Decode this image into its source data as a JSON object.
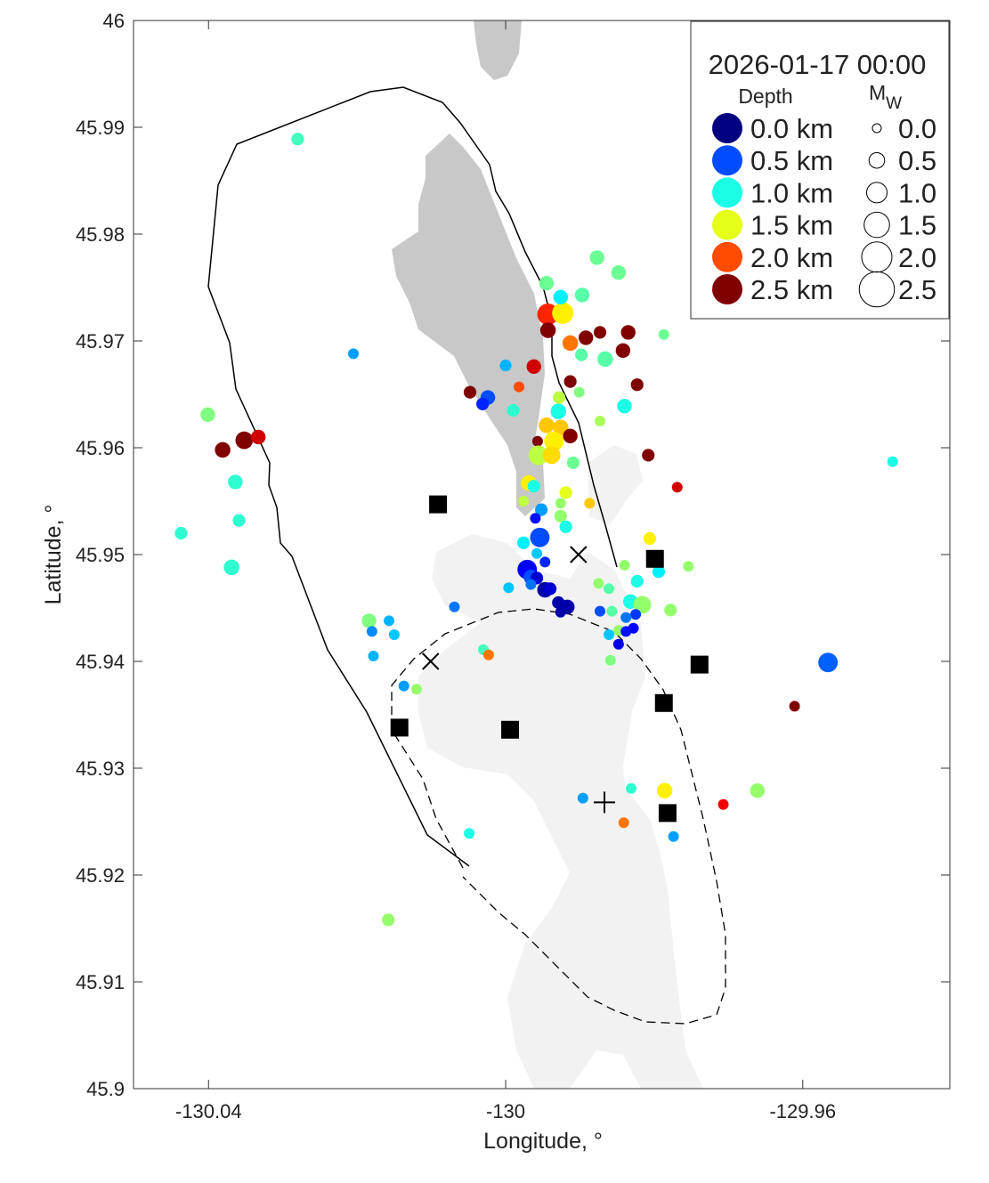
{
  "chart_data": {
    "type": "scatter",
    "title": "2026-01-17 00:00",
    "xlabel": "Longitude, °",
    "ylabel": "Latitude, °",
    "xlim": [
      -130.0501,
      -129.9402
    ],
    "ylim": [
      45.9,
      46.0
    ],
    "xticks": [
      -130.04,
      -130,
      -129.96
    ],
    "xtick_labels": [
      "-130.04",
      "-130",
      "-129.96"
    ],
    "yticks": [
      45.9,
      45.91,
      45.92,
      45.93,
      45.94,
      45.95,
      45.96,
      45.97,
      45.98,
      45.99,
      46
    ],
    "ytick_labels": [
      "45.9",
      "45.91",
      "45.92",
      "45.93",
      "45.94",
      "45.95",
      "45.96",
      "45.97",
      "45.98",
      "45.99",
      "46"
    ],
    "grid": false,
    "colormap": "jet",
    "depth_range_km": [
      0,
      2.5
    ],
    "legend": {
      "placement": "top-right",
      "depth_title": "Depth",
      "mw_title": "M",
      "mw_subscript": "W",
      "depth_entries": [
        {
          "label": "0.0 km",
          "depth": 0.0
        },
        {
          "label": "0.5 km",
          "depth": 0.5
        },
        {
          "label": "1.0 km",
          "depth": 1.0
        },
        {
          "label": "1.5 km",
          "depth": 1.5
        },
        {
          "label": "2.0 km",
          "depth": 2.0
        },
        {
          "label": "2.5 km",
          "depth": 2.5
        }
      ],
      "mw_entries": [
        {
          "label": "0.0",
          "mw": 0.0
        },
        {
          "label": "0.5",
          "mw": 0.5
        },
        {
          "label": "1.0",
          "mw": 1.0
        },
        {
          "label": "1.5",
          "mw": 1.5
        },
        {
          "label": "2.0",
          "mw": 2.0
        },
        {
          "label": "2.5",
          "mw": 2.5
        }
      ]
    },
    "point_fields": [
      "lon",
      "lat",
      "depth_km",
      "mw"
    ],
    "points": [
      [
        -130.028,
        45.9889,
        1.1,
        0.2
      ],
      [
        -130.0205,
        45.9688,
        0.7,
        0.0
      ],
      [
        -130.0401,
        45.9631,
        1.25,
        0.4
      ],
      [
        -130.0381,
        45.9598,
        2.5,
        0.5
      ],
      [
        -130.0352,
        45.9607,
        2.5,
        0.7
      ],
      [
        -130.0333,
        45.961,
        2.3,
        0.4
      ],
      [
        -130.0364,
        45.9568,
        1.05,
        0.4
      ],
      [
        -130.0359,
        45.9532,
        1.05,
        0.2
      ],
      [
        -130.0437,
        45.952,
        1.05,
        0.2
      ],
      [
        -130.0369,
        45.9488,
        1.05,
        0.5
      ],
      [
        -130.0184,
        45.9438,
        1.25,
        0.4
      ],
      [
        -130.018,
        45.9428,
        0.65,
        0.0
      ],
      [
        -130.0157,
        45.9438,
        0.75,
        0.0
      ],
      [
        -130.015,
        45.9425,
        0.8,
        0.0
      ],
      [
        -130.0178,
        45.9405,
        0.75,
        0.0
      ],
      [
        -130.0137,
        45.9377,
        0.7,
        0.0
      ],
      [
        -130.012,
        45.9374,
        1.3,
        0.0
      ],
      [
        -130.0069,
        45.9451,
        0.6,
        0.0
      ],
      [
        -130.003,
        45.9411,
        1.1,
        0.0
      ],
      [
        -130.0023,
        45.9406,
        1.9,
        0.0
      ],
      [
        -130.0049,
        45.9239,
        1.0,
        0.0
      ],
      [
        -130.0158,
        45.9158,
        1.3,
        0.2
      ],
      [
        -130.0,
        45.9677,
        0.75,
        0.1
      ],
      [
        -129.9962,
        45.9676,
        2.3,
        0.4
      ],
      [
        -129.9982,
        45.9657,
        2.0,
        0.0
      ],
      [
        -130.0048,
        45.9652,
        2.5,
        0.2
      ],
      [
        -130.0024,
        45.9647,
        0.5,
        0.4
      ],
      [
        -130.0031,
        45.9641,
        0.4,
        0.2
      ],
      [
        -129.999,
        45.9635,
        1.05,
        0.2
      ],
      [
        -129.9945,
        45.9754,
        1.2,
        0.4
      ],
      [
        -129.9943,
        45.9725,
        2.1,
        1.1
      ],
      [
        -129.9923,
        45.9726,
        1.6,
        1.1
      ],
      [
        -129.9926,
        45.9741,
        0.9,
        0.4
      ],
      [
        -129.9897,
        45.9743,
        1.15,
        0.4
      ],
      [
        -129.9943,
        45.971,
        2.5,
        0.5
      ],
      [
        -129.9913,
        45.9698,
        1.9,
        0.5
      ],
      [
        -129.9892,
        45.9703,
        2.5,
        0.4
      ],
      [
        -129.9873,
        45.9708,
        2.5,
        0.2
      ],
      [
        -129.9835,
        45.9708,
        2.5,
        0.4
      ],
      [
        -129.9842,
        45.9691,
        2.5,
        0.4
      ],
      [
        -129.9866,
        45.9683,
        1.15,
        0.5
      ],
      [
        -129.9898,
        45.9687,
        1.15,
        0.2
      ],
      [
        -129.9787,
        45.9706,
        1.2,
        0.0
      ],
      [
        -129.9877,
        45.9778,
        1.2,
        0.4
      ],
      [
        -129.9848,
        45.9764,
        1.2,
        0.4
      ],
      [
        -129.9913,
        45.9662,
        2.5,
        0.2
      ],
      [
        -129.9901,
        45.9652,
        1.25,
        0.0
      ],
      [
        -129.9823,
        45.9659,
        2.5,
        0.2
      ],
      [
        -129.984,
        45.9639,
        1.0,
        0.4
      ],
      [
        -129.9873,
        45.9625,
        1.35,
        0.0
      ],
      [
        -129.9928,
        45.9647,
        1.4,
        0.2
      ],
      [
        -129.9929,
        45.9634,
        1.0,
        0.5
      ],
      [
        -129.9945,
        45.9621,
        1.7,
        0.5
      ],
      [
        -129.9926,
        45.9619,
        1.7,
        0.5
      ],
      [
        -129.9913,
        45.9611,
        2.5,
        0.4
      ],
      [
        -129.9957,
        45.9606,
        2.5,
        0.0
      ],
      [
        -129.9935,
        45.9606,
        1.6,
        0.9
      ],
      [
        -129.9956,
        45.9593,
        1.4,
        0.9
      ],
      [
        -129.9938,
        45.9593,
        1.65,
        0.7
      ],
      [
        -129.9909,
        45.9586,
        1.2,
        0.2
      ],
      [
        -129.9808,
        45.9593,
        2.5,
        0.2
      ],
      [
        -129.9769,
        45.9563,
        2.3,
        0.0
      ],
      [
        -129.9969,
        45.9567,
        1.6,
        0.5
      ],
      [
        -129.9962,
        45.9564,
        1.0,
        0.2
      ],
      [
        -129.9976,
        45.955,
        1.4,
        0.0
      ],
      [
        -129.9919,
        45.9558,
        1.5,
        0.2
      ],
      [
        -129.9926,
        45.9548,
        1.3,
        0.0
      ],
      [
        -129.9926,
        45.9536,
        1.3,
        0.2
      ],
      [
        -129.9887,
        45.9548,
        1.7,
        0.0
      ],
      [
        -129.9952,
        45.9542,
        0.7,
        0.2
      ],
      [
        -129.996,
        45.9534,
        0.35,
        0.0
      ],
      [
        -129.9919,
        45.9526,
        1.0,
        0.2
      ],
      [
        -129.9976,
        45.9511,
        0.9,
        0.2
      ],
      [
        -129.9954,
        45.9516,
        0.5,
        0.9
      ],
      [
        -129.9958,
        45.9501,
        0.8,
        0.0
      ],
      [
        -129.9947,
        45.9493,
        0.4,
        0.0
      ],
      [
        -129.9971,
        45.9486,
        0.3,
        0.9
      ],
      [
        -129.9966,
        45.9479,
        0.5,
        0.4
      ],
      [
        -129.9958,
        45.9478,
        0.2,
        0.2
      ],
      [
        -129.9966,
        45.9472,
        0.6,
        0.0
      ],
      [
        -129.9996,
        45.9469,
        0.8,
        0.0
      ],
      [
        -129.9947,
        45.9467,
        0.1,
        0.5
      ],
      [
        -129.994,
        45.9468,
        0.2,
        0.2
      ],
      [
        -129.9929,
        45.9455,
        0.1,
        0.2
      ],
      [
        -129.9917,
        45.9451,
        0.1,
        0.4
      ],
      [
        -129.9926,
        45.9446,
        0.1,
        0.0
      ],
      [
        -129.9806,
        45.9515,
        1.6,
        0.2
      ],
      [
        -129.9794,
        45.9484,
        0.9,
        0.2
      ],
      [
        -129.984,
        45.949,
        1.3,
        0.0
      ],
      [
        -129.9754,
        45.9489,
        1.3,
        0.0
      ],
      [
        -129.9875,
        45.9473,
        1.3,
        0.0
      ],
      [
        -129.9861,
        45.9468,
        1.15,
        0.0
      ],
      [
        -129.9823,
        45.9475,
        1.0,
        0.2
      ],
      [
        -129.9832,
        45.9456,
        1.0,
        0.4
      ],
      [
        -129.9816,
        45.9453,
        1.3,
        0.7
      ],
      [
        -129.9778,
        45.9448,
        1.3,
        0.2
      ],
      [
        -129.9873,
        45.9447,
        0.5,
        0.0
      ],
      [
        -129.9857,
        45.9447,
        1.15,
        0.0
      ],
      [
        -129.9825,
        45.9444,
        0.45,
        0.0
      ],
      [
        -129.9838,
        45.9441,
        0.6,
        0.0
      ],
      [
        -129.9848,
        45.9429,
        1.3,
        0.0
      ],
      [
        -129.9861,
        45.9425,
        0.8,
        0.0
      ],
      [
        -129.9828,
        45.9431,
        0.3,
        0.0
      ],
      [
        -129.9838,
        45.9428,
        0.35,
        0.0
      ],
      [
        -129.9848,
        45.9416,
        0.25,
        0.0
      ],
      [
        -129.9859,
        45.9401,
        1.25,
        0.0
      ],
      [
        -129.9566,
        45.9399,
        0.55,
        0.9
      ],
      [
        -129.9611,
        45.9358,
        2.5,
        0.0
      ],
      [
        -129.9479,
        45.9587,
        1.0,
        0.0
      ],
      [
        -129.9661,
        45.9279,
        1.3,
        0.4
      ],
      [
        -129.9786,
        45.9279,
        1.6,
        0.5
      ],
      [
        -129.9831,
        45.9281,
        1.05,
        0.0
      ],
      [
        -129.9896,
        45.9272,
        0.7,
        0.0
      ],
      [
        -129.9841,
        45.9249,
        1.9,
        0.0
      ],
      [
        -129.9774,
        45.9236,
        0.7,
        0.0
      ],
      [
        -129.9707,
        45.9266,
        2.2,
        0.0
      ]
    ],
    "stations_square": [
      [
        -130.0091,
        45.9547
      ],
      [
        -129.9799,
        45.9496
      ],
      [
        -129.9739,
        45.9397
      ],
      [
        -129.9787,
        45.9361
      ],
      [
        -130.0143,
        45.9338
      ],
      [
        -129.9994,
        45.9336
      ],
      [
        -129.9782,
        45.9258
      ]
    ],
    "markers_x": [
      [
        -129.9902,
        45.95
      ],
      [
        -130.0101,
        45.94
      ]
    ],
    "markers_plus": [
      [
        -129.9867,
        45.9268
      ]
    ],
    "colors": {
      "land_dark": "#c8c8c8",
      "land_light": "#f2f2f2",
      "markers": "#000000"
    }
  }
}
